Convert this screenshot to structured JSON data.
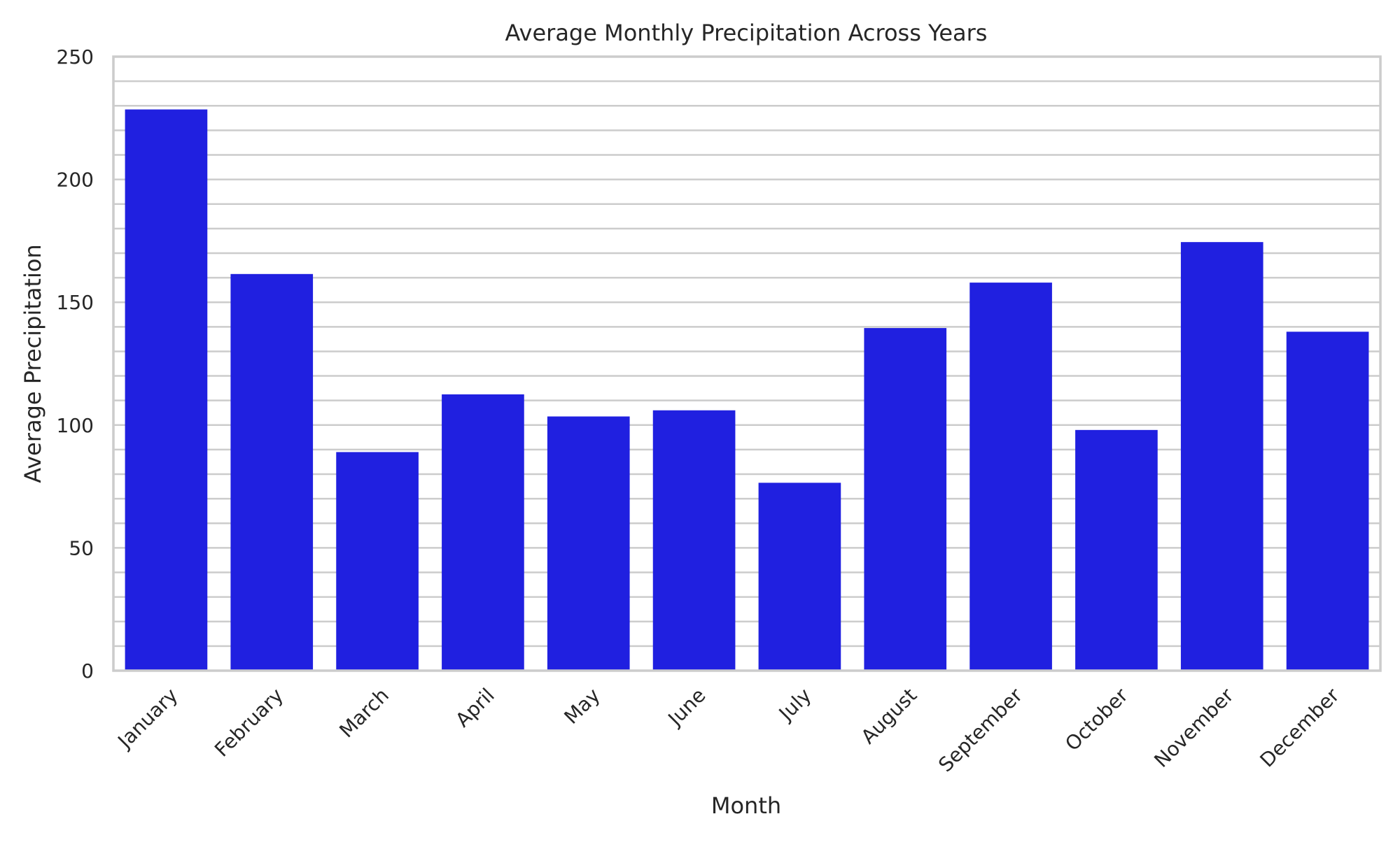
{
  "chart_data": {
    "type": "bar",
    "title": "Average Monthly Precipitation Across Years",
    "xlabel": "Month",
    "ylabel": "Average Precipitation",
    "categories": [
      "January",
      "February",
      "March",
      "April",
      "May",
      "June",
      "July",
      "August",
      "September",
      "October",
      "November",
      "December"
    ],
    "values": [
      228.5,
      161.5,
      89,
      112.5,
      103.5,
      106,
      76.5,
      139.5,
      158,
      98,
      174.5,
      138
    ],
    "ylim": [
      0,
      250
    ],
    "yticks": [
      0,
      50,
      100,
      150,
      200,
      250
    ],
    "bar_color": "#2020e0",
    "grid": true,
    "legend": "none"
  }
}
